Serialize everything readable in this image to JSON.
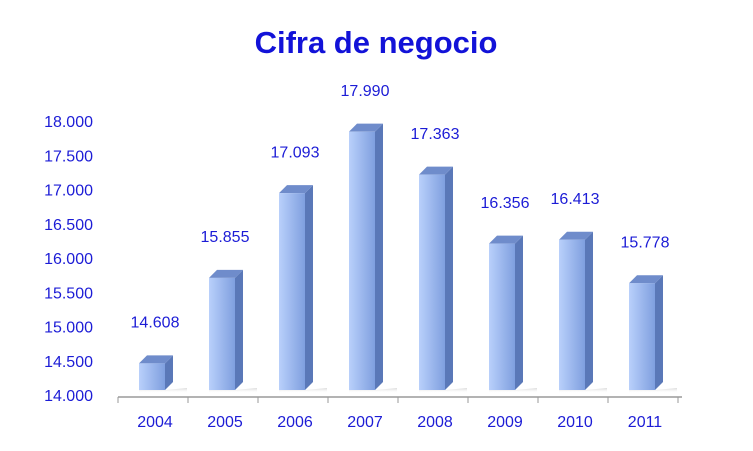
{
  "chart_data": {
    "type": "bar",
    "title": "Cifra de negocio",
    "categories": [
      "2004",
      "2005",
      "2006",
      "2007",
      "2008",
      "2009",
      "2010",
      "2011"
    ],
    "values": [
      14608,
      15855,
      17093,
      17990,
      17363,
      16356,
      16413,
      15778
    ],
    "value_labels": [
      "14.608",
      "15.855",
      "17.093",
      "17.990",
      "17.363",
      "16.356",
      "16.413",
      "15.778"
    ],
    "color": "#8aaeea",
    "ylim": [
      14000,
      18000
    ],
    "yticks": [
      {
        "value": 14000,
        "label": "14.000"
      },
      {
        "value": 14500,
        "label": "14.500"
      },
      {
        "value": 15000,
        "label": "15.000"
      },
      {
        "value": 15500,
        "label": "15.500"
      },
      {
        "value": 16000,
        "label": "16.000"
      },
      {
        "value": 16500,
        "label": "16.500"
      },
      {
        "value": 17000,
        "label": "17.000"
      },
      {
        "value": 17500,
        "label": "17.500"
      },
      {
        "value": 18000,
        "label": "18.000"
      }
    ],
    "grid": false
  }
}
